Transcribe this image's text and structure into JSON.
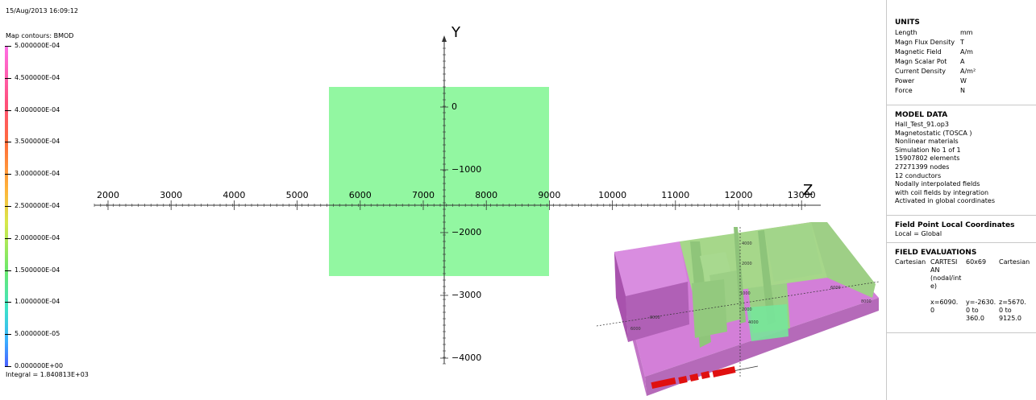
{
  "timestamp": "15/Aug/2013 16:09:12",
  "legend": {
    "title": "Map contours: BMOD",
    "levels": [
      "5.000000E-04",
      "4.500000E-04",
      "4.000000E-04",
      "3.500000E-04",
      "3.000000E-04",
      "2.500000E-04",
      "2.000000E-04",
      "1.500000E-04",
      "1.000000E-04",
      "5.000000E-05",
      "0.000000E+00"
    ],
    "integral": "Integral = 1.840813E+03"
  },
  "plot": {
    "y_axis_label": "Y",
    "z_axis_label": "Z",
    "z_ticks": [
      "2000",
      "3000",
      "4000",
      "5000",
      "6000",
      "7000",
      "8000",
      "9000",
      "10000",
      "11000",
      "12000",
      "13000"
    ],
    "y_ticks": [
      "0",
      "−1000",
      "−2000",
      "−3000",
      "−4000"
    ],
    "field_color": "#8cf79c"
  },
  "model_view": {
    "labels": [
      "4000",
      "2000",
      "6000",
      "8000",
      "1000",
      "2000",
      "4000",
      "6000",
      "8000"
    ]
  },
  "sidebar": {
    "units": {
      "heading": "UNITS",
      "rows": [
        {
          "name": "Length",
          "unit": "mm"
        },
        {
          "name": "Magn Flux Density",
          "unit": "T"
        },
        {
          "name": "Magnetic Field",
          "unit": "A/m"
        },
        {
          "name": "Magn Scalar Pot",
          "unit": "A"
        },
        {
          "name": "Current Density",
          "unit": "A/m²"
        },
        {
          "name": "Power",
          "unit": "W"
        },
        {
          "name": "Force",
          "unit": "N"
        }
      ]
    },
    "model_data": {
      "heading": "MODEL DATA",
      "lines": [
        "Hall_Test_91.op3",
        "Magnetostatic (TOSCA )",
        "Nonlinear materials",
        "Simulation No 1 of 1",
        "15907802 elements",
        "27271399 nodes",
        "12 conductors",
        "Nodally interpolated fields",
        "with coil fields by integration",
        "Activated in global coordinates"
      ]
    },
    "local_coords": {
      "heading": "Field Point Local Coordinates",
      "value": "Local = Global"
    },
    "field_eval": {
      "heading": "FIELD EVALUATIONS",
      "type": "Cartesian",
      "mode_lines": [
        "CARTESI",
        "AN",
        "(nodal/int",
        "e)"
      ],
      "grid": "60x69",
      "coord": "Cartesian",
      "x_lines": [
        "x=6090.",
        "0"
      ],
      "y_lines": [
        "y=-2630.",
        "0 to",
        "360.0"
      ],
      "z_lines": [
        "z=5670.",
        "0 to",
        "9125.0"
      ]
    }
  },
  "colors": {
    "magenta_part": "#d37fd8",
    "green_part": "#9ecf86",
    "coil": "#e01010"
  }
}
